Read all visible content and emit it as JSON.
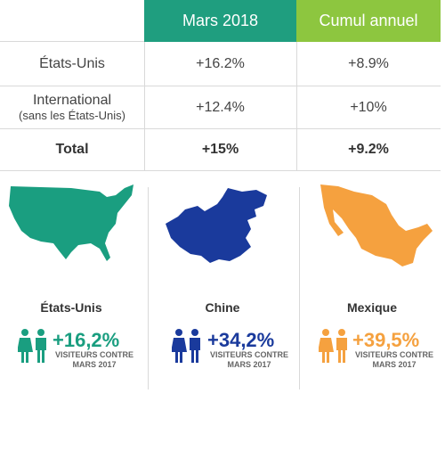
{
  "table": {
    "header": [
      "Mars 2018",
      "Cumul annuel"
    ],
    "rows": [
      {
        "label": "États-Unis",
        "cells": [
          "+16.2%",
          "+8.9%"
        ]
      },
      {
        "label": "International",
        "sublabel": "(sans les États-Unis)",
        "cells": [
          "+12.4%",
          "+10%"
        ]
      },
      {
        "label": "Total",
        "cells": [
          "+15%",
          "+9.2%"
        ]
      }
    ]
  },
  "countries": [
    {
      "name": "États-Unis",
      "change": "+16,2%",
      "note": [
        "VISITEURS CONTRE",
        "MARS 2017"
      ]
    },
    {
      "name": "Chine",
      "change": "+34,2%",
      "note": [
        "VISITEURS CONTRE",
        "MARS 2017"
      ]
    },
    {
      "name": "Mexique",
      "change": "+39,5%",
      "note": [
        "VISITEURS CONTRE",
        "MARS 2017"
      ]
    }
  ]
}
